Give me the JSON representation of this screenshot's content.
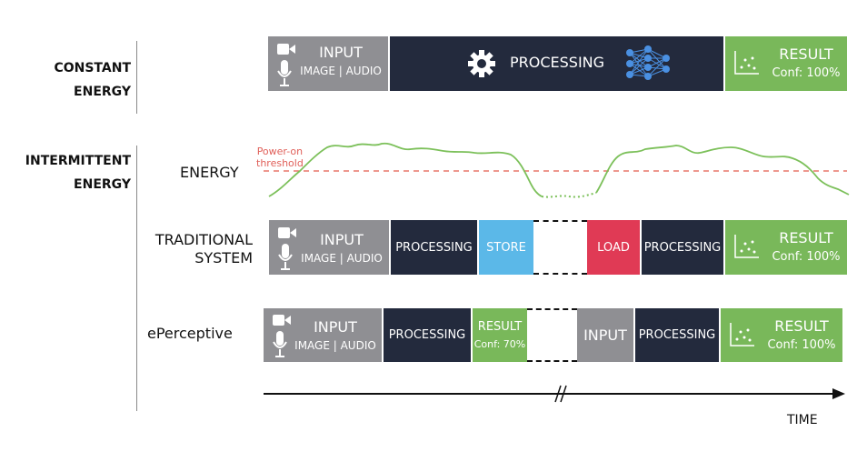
{
  "constant": {
    "label_line1": "CONSTANT",
    "label_line2": "ENERGY",
    "input_title": "INPUT",
    "input_sub": "IMAGE | AUDIO",
    "processing": "PROCESSING",
    "result_title": "RESULT",
    "result_conf": "Conf: 100%"
  },
  "intermittent": {
    "label_line1": "INTERMITTENT",
    "label_line2": "ENERGY",
    "energy_label": "ENERGY",
    "threshold_line1": "Power-on",
    "threshold_line2": "threshold"
  },
  "traditional": {
    "label_line1": "TRADITIONAL",
    "label_line2": "SYSTEM",
    "input_title": "INPUT",
    "input_sub": "IMAGE | AUDIO",
    "processing1": "PROCESSING",
    "store": "STORE",
    "load": "LOAD",
    "processing2": "PROCESSING",
    "result_title": "RESULT",
    "result_conf": "Conf: 100%"
  },
  "eperceptive": {
    "label": "ePerceptive",
    "input_title": "INPUT",
    "input_sub": "IMAGE | AUDIO",
    "processing1": "PROCESSING",
    "result1_title": "RESULT",
    "result1_conf": "Conf: 70%",
    "input2": "INPUT",
    "processing2": "PROCESSING",
    "result2_title": "RESULT",
    "result2_conf": "Conf: 100%"
  },
  "time_label": "TIME",
  "colors": {
    "input": "#8f8f93",
    "processing": "#232a3d",
    "result": "#79b85a",
    "store": "#5bb8e8",
    "load": "#e03a55",
    "energy_curve": "#7cc05a",
    "threshold": "#e8766a"
  },
  "icons": [
    "camera-icon",
    "microphone-icon",
    "gear-icon",
    "neural-network-icon",
    "scatter-plot-icon"
  ]
}
